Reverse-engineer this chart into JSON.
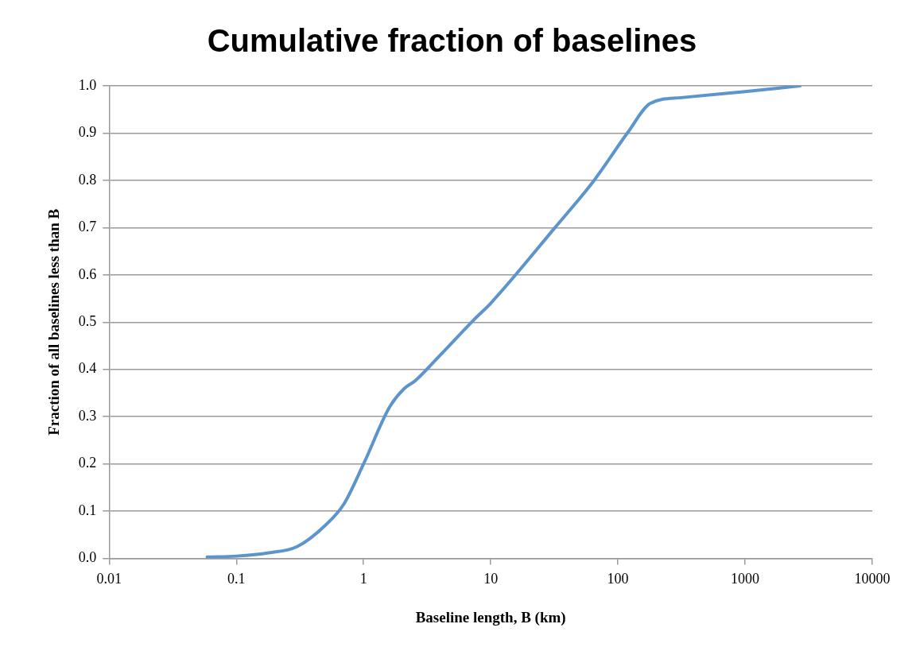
{
  "chart_data": {
    "type": "line",
    "title": "Cumulative fraction of baselines",
    "xlabel": "Baseline length, B (km)",
    "ylabel": "Fraction of all baselines less than B",
    "log": "x",
    "grid": "y",
    "legend": false,
    "marker": "none",
    "line_style": "solid",
    "xlim": [
      0.01,
      10000
    ],
    "xticks": [
      0.01,
      0.1,
      1,
      10,
      100,
      1000,
      10000
    ],
    "ylim": [
      0,
      1
    ],
    "yticks": [
      {
        "value": 0,
        "label": "0.0"
      },
      0.1,
      0.2,
      0.3,
      0.4,
      0.5,
      0.6,
      0.7,
      0.8,
      0.9,
      {
        "value": 1,
        "label": "1.0"
      }
    ],
    "series": [
      {
        "color": "#5b95cb",
        "x": [
          0.059,
          0.1,
          0.18,
          0.3,
          0.5,
          0.7,
          1,
          1.6,
          2.1,
          2.55,
          4,
          7.5,
          10,
          32,
          65,
          120,
          180,
          313,
          1000,
          2700
        ],
        "values": [
          0.003,
          0.005,
          0.012,
          0.025,
          0.07,
          0.115,
          0.2,
          0.32,
          0.36,
          0.376,
          0.43,
          0.507,
          0.54,
          0.7,
          0.8,
          0.902,
          0.963,
          0.975,
          0.988,
          1.0
        ]
      }
    ]
  }
}
